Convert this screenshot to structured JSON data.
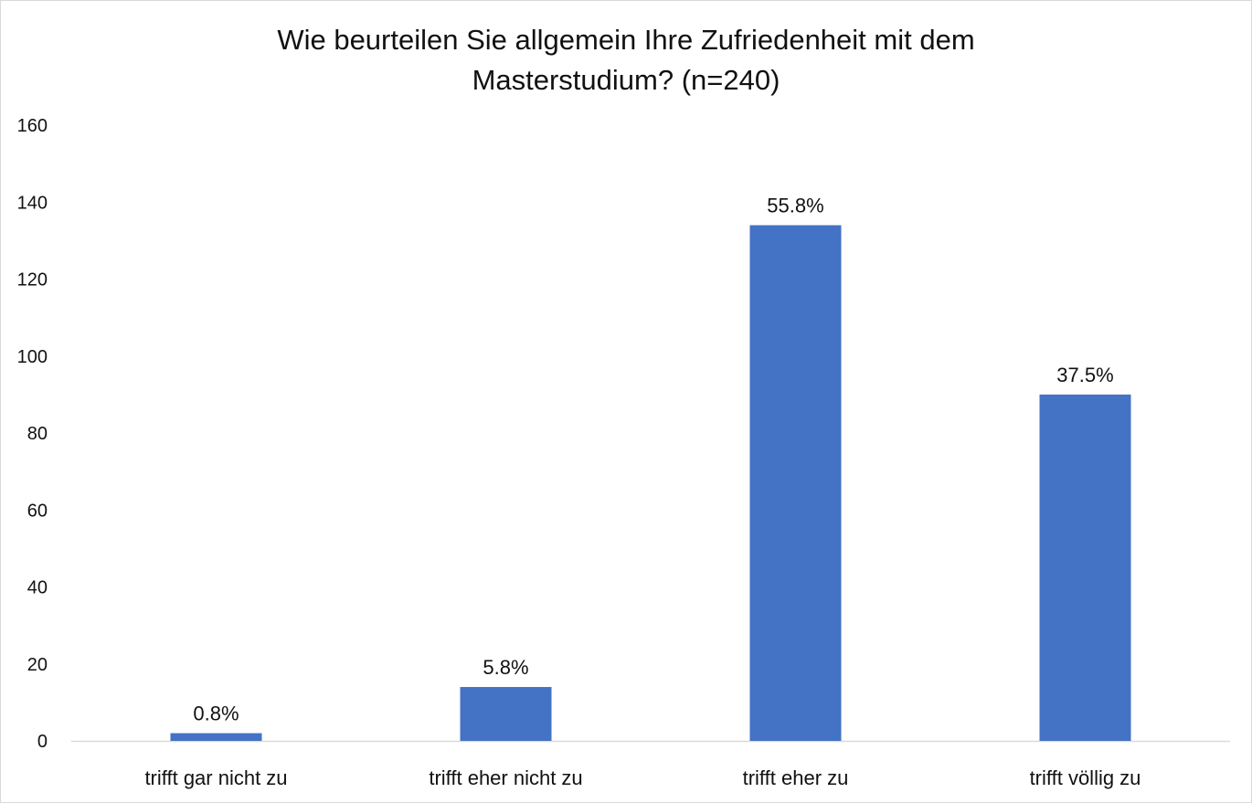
{
  "chart_data": {
    "type": "bar",
    "title_lines": [
      "Wie beurteilen Sie allgemein Ihre Zufriedenheit mit dem",
      "Masterstudium? (n=240)"
    ],
    "categories": [
      "trifft gar nicht zu",
      "trifft eher nicht zu",
      "trifft eher zu",
      "trifft völlig zu"
    ],
    "values": [
      2,
      14,
      134,
      90
    ],
    "data_labels": [
      "0.8%",
      "5.8%",
      "55.8%",
      "37.5%"
    ],
    "ylim": [
      0,
      160
    ],
    "yticks": [
      0,
      20,
      40,
      60,
      80,
      100,
      120,
      140,
      160
    ],
    "xlabel": "",
    "ylabel": "",
    "grid": false,
    "legend": "none",
    "bar_color": "#4472C4",
    "axis_color": "#d9d9d9"
  }
}
